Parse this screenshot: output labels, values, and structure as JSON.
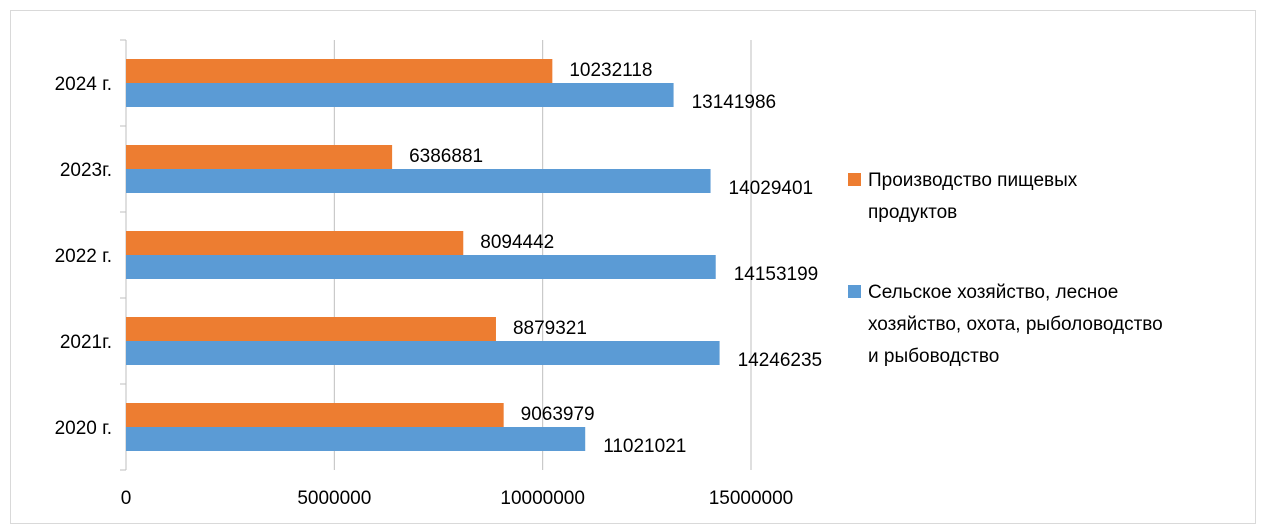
{
  "chart_data": {
    "type": "bar",
    "orientation": "horizontal",
    "categories": [
      "2024 г.",
      "2023г.",
      "2022 г.",
      "2021г.",
      "2020 г."
    ],
    "series": [
      {
        "name": "Производство пищевых продуктов",
        "color": "#ED7D31",
        "values": [
          10232118,
          6386881,
          8094442,
          8879321,
          9063979
        ],
        "labels": [
          "10232118",
          "6386881",
          "8094442",
          "8879321",
          "9063979"
        ]
      },
      {
        "name": "Сельское хозяйство, лесное хозяйство, охота, рыболоводство и рыбоводство",
        "color": "#5B9BD5",
        "values": [
          13141986,
          14029401,
          14153199,
          14246235,
          11021021
        ],
        "labels": [
          "13141986",
          "14029401",
          "14153199",
          "14246235",
          "11021021"
        ]
      }
    ],
    "xlim": [
      0,
      15000000
    ],
    "x_ticks": [
      "0",
      "5000000",
      "10000000",
      "15000000"
    ],
    "x_tick_values": [
      0,
      5000000,
      10000000,
      15000000
    ],
    "grid": true,
    "legend_position": "right",
    "legend_lines": [
      [
        "Производство пищевых",
        "продуктов"
      ],
      [
        "Сельское хозяйство, лесное",
        "хозяйство, охота, рыболоводство",
        "и рыбоводство"
      ]
    ]
  }
}
